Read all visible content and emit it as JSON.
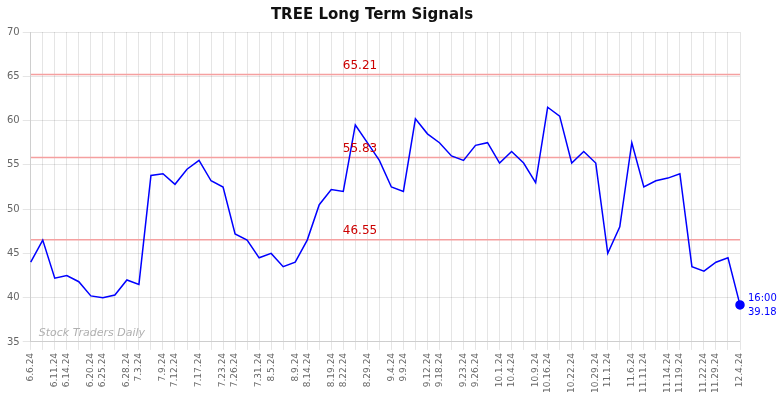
{
  "chart_data": {
    "type": "line",
    "title": "TREE Long Term Signals",
    "categories": [
      "6.6.24",
      null,
      "6.11.24",
      "6.14.24",
      null,
      "6.20.24",
      "6.25.24",
      null,
      "6.28.24",
      "7.3.24",
      null,
      "7.9.24",
      "7.12.24",
      null,
      "7.17.24",
      null,
      "7.23.24",
      "7.26.24",
      null,
      "7.31.24",
      "8.5.24",
      null,
      "8.9.24",
      "8.14.24",
      null,
      "8.19.24",
      "8.22.24",
      null,
      "8.29.24",
      null,
      "9.4.24",
      "9.9.24",
      null,
      "9.12.24",
      "9.18.24",
      null,
      "9.23.24",
      "9.26.24",
      null,
      "10.1.24",
      "10.4.24",
      null,
      "10.9.24",
      "10.16.24",
      null,
      "10.22.24",
      null,
      "10.29.24",
      "11.1.24",
      null,
      "11.6.24",
      "11.11.24",
      null,
      "11.14.24",
      "11.19.24",
      null,
      "11.22.24",
      "11.29.24",
      null,
      "12.4.24"
    ],
    "values": [
      44.0,
      46.5,
      42.2,
      42.5,
      41.8,
      40.2,
      40.0,
      40.3,
      42.0,
      41.5,
      53.8,
      54.0,
      52.8,
      54.5,
      55.5,
      53.2,
      52.5,
      47.2,
      46.5,
      44.5,
      45.0,
      43.5,
      44.0,
      46.5,
      50.5,
      52.2,
      52.0,
      59.5,
      57.5,
      55.5,
      52.5,
      52.0,
      60.2,
      58.5,
      57.5,
      56.0,
      55.5,
      57.2,
      57.5,
      55.2,
      56.5,
      55.2,
      53.0,
      61.5,
      60.5,
      55.2,
      56.5,
      55.2,
      45.0,
      48.0,
      57.5,
      52.5,
      53.2,
      53.5,
      54.0,
      43.5,
      43.0,
      44.0,
      44.5,
      39.18
    ],
    "color": "blue",
    "ylim": [
      35,
      70
    ],
    "yticks": [
      35,
      40,
      45,
      50,
      55,
      60,
      65,
      70
    ],
    "grid": true,
    "hlines": [
      {
        "y": 65.21,
        "label": "65.21"
      },
      {
        "y": 55.83,
        "label": "55.83"
      },
      {
        "y": 46.55,
        "label": "46.55"
      }
    ],
    "hline_color": "#f5a0a0",
    "hline_label_color": "#cc0000",
    "last_point_labels": [
      {
        "text": "16:00",
        "color": "blue"
      },
      {
        "text": "39.18",
        "color": "blue"
      }
    ],
    "watermark": {
      "text": "Stock Traders Daily",
      "color": "#b0b0b0"
    }
  }
}
